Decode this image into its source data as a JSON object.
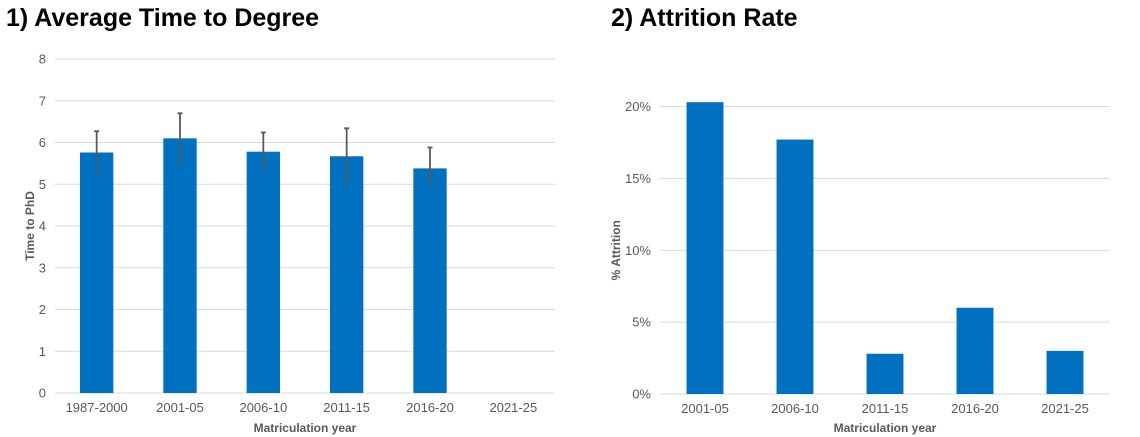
{
  "chart_data": [
    {
      "type": "bar",
      "title": "1) Average Time to Degree",
      "xlabel": "Matriculation year",
      "ylabel": "Time to PhD",
      "ylim": [
        0,
        8
      ],
      "yticks": [
        "0",
        "1",
        "2",
        "3",
        "4",
        "5",
        "6",
        "7",
        "8"
      ],
      "grid": true,
      "color": "#0070C0",
      "error_bar_color": "#595959",
      "categories": [
        "1987-2000",
        "2001-05",
        "2006-10",
        "2011-15",
        "2016-20",
        "2021-25"
      ],
      "values": [
        5.76,
        6.1,
        5.78,
        5.67,
        5.38,
        null
      ],
      "error": [
        0.51,
        0.6,
        0.46,
        0.67,
        0.5,
        null
      ]
    },
    {
      "type": "bar",
      "title": "2) Attrition Rate",
      "xlabel": "Matriculation year",
      "ylabel": "% Attrition",
      "ylim": [
        0,
        20
      ],
      "yticks": [
        "0%",
        "5%",
        "10%",
        "15%",
        "20%"
      ],
      "grid": true,
      "color": "#0070C0",
      "categories": [
        "2001-05",
        "2006-10",
        "2011-15",
        "2016-20",
        "2021-25"
      ],
      "values": [
        20.3,
        17.7,
        2.8,
        6.0,
        3.0
      ]
    }
  ]
}
